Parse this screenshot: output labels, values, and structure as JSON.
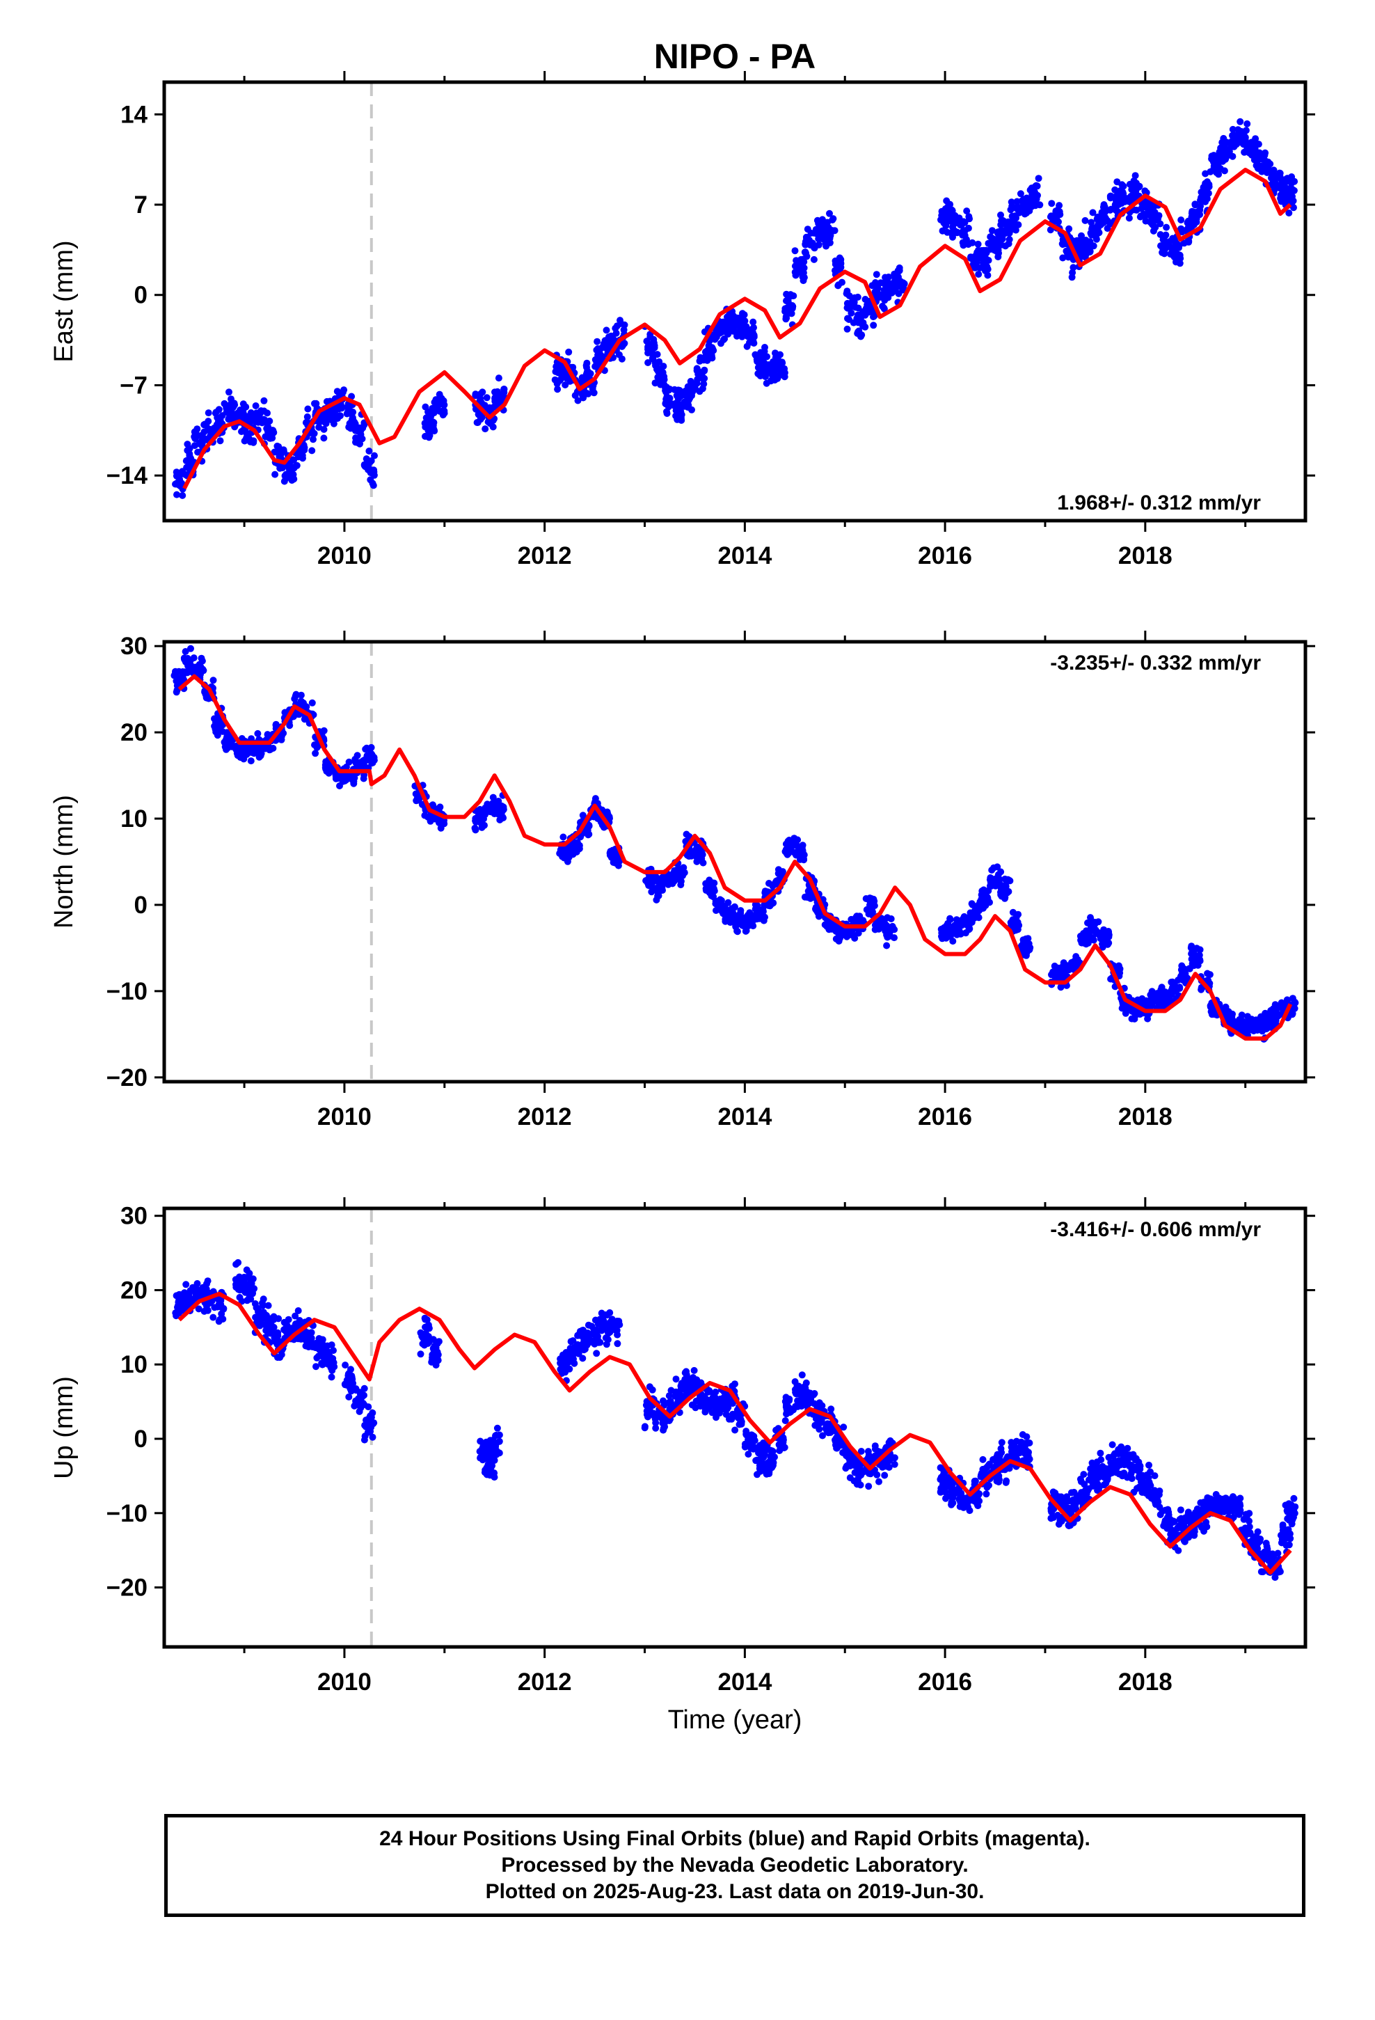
{
  "title": "NIPO - PA",
  "xlabel": "Time (year)",
  "chart_data": [
    {
      "type": "scatter",
      "panel": "east",
      "ylabel": "East (mm)",
      "xlim": [
        2008.2,
        2019.6
      ],
      "ylim": [
        -17.5,
        16.5
      ],
      "yticks": [
        -14,
        -7,
        0,
        7,
        14
      ],
      "ytick_labels": [
        "−14",
        "−7",
        "0",
        "7",
        "14"
      ],
      "xticks": [
        2010,
        2012,
        2014,
        2016,
        2018
      ],
      "rate_label": "1.968+/- 0.312 mm/yr",
      "series": [
        {
          "role": "daily positions",
          "color": "#0000ff",
          "x": [
            2008.35,
            2008.45,
            2008.55,
            2008.65,
            2008.75,
            2008.85,
            2008.95,
            2009.05,
            2009.15,
            2009.25,
            2009.35,
            2009.45,
            2009.55,
            2009.65,
            2009.75,
            2009.85,
            2009.95,
            2010.05,
            2010.15,
            2010.25,
            2010.85,
            2010.95,
            2011.35,
            2011.45,
            2011.55,
            2012.15,
            2012.25,
            2012.35,
            2012.45,
            2012.55,
            2012.65,
            2012.75,
            2013.05,
            2013.15,
            2013.25,
            2013.35,
            2013.45,
            2013.55,
            2013.65,
            2013.75,
            2013.85,
            2013.95,
            2014.05,
            2014.15,
            2014.25,
            2014.35,
            2014.45,
            2014.55,
            2014.65,
            2014.75,
            2014.85,
            2014.95,
            2015.05,
            2015.15,
            2015.25,
            2015.35,
            2015.45,
            2015.55,
            2016.0,
            2016.1,
            2016.2,
            2016.3,
            2016.4,
            2016.5,
            2016.6,
            2016.7,
            2016.8,
            2016.9,
            2017.1,
            2017.2,
            2017.3,
            2017.4,
            2017.5,
            2017.6,
            2017.7,
            2017.8,
            2017.9,
            2018.0,
            2018.1,
            2018.2,
            2018.3,
            2018.4,
            2018.5,
            2018.6,
            2018.7,
            2018.8,
            2018.9,
            2019.0,
            2019.1,
            2019.2,
            2019.3,
            2019.4,
            2019.45
          ],
          "y": [
            -14.5,
            -13,
            -11.5,
            -10.5,
            -10,
            -9,
            -9.5,
            -10,
            -9.5,
            -10.5,
            -12.5,
            -13.5,
            -12,
            -10.5,
            -9.5,
            -9,
            -8.5,
            -9,
            -10.5,
            -13.5,
            -10,
            -8.5,
            -9,
            -9.5,
            -8,
            -6,
            -6,
            -7,
            -6.5,
            -5,
            -4,
            -3.5,
            -4,
            -6,
            -8,
            -8.5,
            -8,
            -6,
            -4,
            -2.5,
            -2,
            -2.5,
            -3,
            -5,
            -6,
            -5.5,
            -1,
            2,
            4,
            5,
            5,
            2,
            -1,
            -2,
            -1,
            0,
            0.5,
            1,
            6,
            6,
            5,
            3,
            3,
            4,
            5,
            6,
            7,
            7.5,
            6,
            4,
            3,
            4,
            5,
            6,
            7,
            7.5,
            8,
            7,
            6,
            4,
            3.5,
            5,
            6,
            8,
            10,
            11,
            12,
            12,
            11,
            10,
            9,
            8,
            8
          ]
        },
        {
          "role": "model fit",
          "color": "#ff0000",
          "x": [
            2008.4,
            2008.6,
            2008.8,
            2008.95,
            2009.1,
            2009.3,
            2009.4,
            2009.55,
            2009.75,
            2010.0,
            2010.15,
            2010.35,
            2010.5,
            2010.75,
            2011.0,
            2011.2,
            2011.45,
            2011.6,
            2011.8,
            2012.0,
            2012.2,
            2012.35,
            2012.5,
            2012.75,
            2013.0,
            2013.2,
            2013.35,
            2013.55,
            2013.75,
            2014.0,
            2014.2,
            2014.35,
            2014.55,
            2014.75,
            2015.0,
            2015.2,
            2015.35,
            2015.55,
            2015.75,
            2016.0,
            2016.2,
            2016.35,
            2016.55,
            2016.75,
            2017.0,
            2017.2,
            2017.35,
            2017.55,
            2017.75,
            2018.0,
            2018.2,
            2018.35,
            2018.55,
            2018.75,
            2019.0,
            2019.2,
            2019.35,
            2019.45
          ],
          "y": [
            -15,
            -12,
            -10.2,
            -9.8,
            -10.5,
            -12.8,
            -13,
            -11.5,
            -9,
            -8,
            -8.5,
            -11.5,
            -11,
            -7.5,
            -6,
            -7.5,
            -9.5,
            -8.5,
            -5.5,
            -4.3,
            -5.2,
            -7.3,
            -6.5,
            -3.5,
            -2.3,
            -3.5,
            -5.3,
            -4.2,
            -1.5,
            -0.3,
            -1.2,
            -3.3,
            -2.2,
            0.5,
            1.8,
            1,
            -1.7,
            -0.8,
            2.2,
            3.8,
            2.8,
            0.3,
            1.2,
            4.2,
            5.7,
            4.8,
            2.3,
            3.2,
            6.2,
            7.7,
            6.8,
            4.3,
            5.2,
            8.2,
            9.7,
            8.8,
            6.3,
            7
          ]
        }
      ]
    },
    {
      "type": "scatter",
      "panel": "north",
      "ylabel": "North (mm)",
      "xlim": [
        2008.2,
        2019.6
      ],
      "ylim": [
        -20.5,
        30.5
      ],
      "yticks": [
        -20,
        -10,
        0,
        10,
        20,
        30
      ],
      "ytick_labels": [
        "−20",
        "−10",
        "0",
        "10",
        "20",
        "30"
      ],
      "xticks": [
        2010,
        2012,
        2014,
        2016,
        2018
      ],
      "rate_label": "-3.235+/- 0.332 mm/yr",
      "series": [
        {
          "role": "daily positions",
          "color": "#0000ff",
          "x": [
            2008.35,
            2008.45,
            2008.55,
            2008.65,
            2008.75,
            2008.85,
            2008.95,
            2009.05,
            2009.15,
            2009.25,
            2009.35,
            2009.45,
            2009.55,
            2009.65,
            2009.75,
            2009.85,
            2009.95,
            2010.05,
            2010.15,
            2010.25,
            2010.75,
            2010.85,
            2010.95,
            2011.35,
            2011.45,
            2011.55,
            2012.2,
            2012.3,
            2012.4,
            2012.5,
            2012.6,
            2012.7,
            2013.05,
            2013.15,
            2013.25,
            2013.35,
            2013.45,
            2013.55,
            2013.65,
            2013.75,
            2013.85,
            2013.95,
            2014.05,
            2014.15,
            2014.25,
            2014.35,
            2014.45,
            2014.55,
            2014.65,
            2014.75,
            2014.85,
            2014.95,
            2015.05,
            2015.15,
            2015.25,
            2015.35,
            2015.45,
            2016.0,
            2016.1,
            2016.2,
            2016.3,
            2016.4,
            2016.5,
            2016.6,
            2016.7,
            2016.8,
            2017.1,
            2017.2,
            2017.3,
            2017.4,
            2017.5,
            2017.6,
            2017.7,
            2017.8,
            2017.9,
            2018.0,
            2018.1,
            2018.2,
            2018.3,
            2018.4,
            2018.5,
            2018.6,
            2018.7,
            2018.8,
            2018.9,
            2019.0,
            2019.1,
            2019.2,
            2019.3,
            2019.4,
            2019.45
          ],
          "y": [
            26,
            28,
            27,
            25,
            21,
            19,
            18,
            18,
            18.5,
            19,
            20,
            22,
            23,
            22,
            19,
            16,
            15,
            15,
            16,
            17,
            13,
            11,
            10,
            10,
            11,
            11,
            6,
            7,
            9,
            11,
            10,
            6,
            3,
            2,
            3,
            4,
            7,
            6,
            2,
            0,
            -1,
            -2,
            -2,
            -1,
            1,
            3,
            7,
            6,
            2,
            0,
            -2,
            -3,
            -3,
            -2,
            0,
            -2,
            -3,
            -3,
            -3,
            -2,
            -1,
            1,
            3,
            2,
            -2,
            -5,
            -8,
            -8,
            -7,
            -4,
            -3,
            -4,
            -8,
            -11,
            -12,
            -12,
            -11,
            -11,
            -10,
            -8,
            -6,
            -9,
            -12,
            -13,
            -14,
            -14,
            -14,
            -14,
            -13,
            -12,
            -12
          ]
        },
        {
          "role": "model fit",
          "color": "#ff0000",
          "x": [
            2008.35,
            2008.5,
            2008.65,
            2008.8,
            2008.95,
            2009.1,
            2009.25,
            2009.4,
            2009.5,
            2009.65,
            2009.8,
            2009.95,
            2010.1,
            2010.25,
            2010.27,
            2010.4,
            2010.55,
            2010.7,
            2010.85,
            2011.0,
            2011.2,
            2011.35,
            2011.5,
            2011.65,
            2011.8,
            2012.0,
            2012.2,
            2012.35,
            2012.5,
            2012.65,
            2012.8,
            2013.0,
            2013.2,
            2013.35,
            2013.5,
            2013.65,
            2013.8,
            2014.0,
            2014.2,
            2014.35,
            2014.5,
            2014.65,
            2014.8,
            2015.0,
            2015.2,
            2015.35,
            2015.5,
            2015.65,
            2015.8,
            2016.0,
            2016.2,
            2016.35,
            2016.5,
            2016.65,
            2016.8,
            2017.0,
            2017.2,
            2017.35,
            2017.5,
            2017.65,
            2017.8,
            2018.0,
            2018.2,
            2018.35,
            2018.5,
            2018.65,
            2018.8,
            2019.0,
            2019.2,
            2019.35,
            2019.45
          ],
          "y": [
            25,
            26.5,
            25,
            21.5,
            18.8,
            18.8,
            18.8,
            21,
            23,
            22,
            18,
            15.5,
            15.5,
            15.5,
            14,
            15,
            18,
            15,
            11,
            10.2,
            10.2,
            12,
            15,
            12,
            8,
            7,
            7,
            8.5,
            11.5,
            9,
            5,
            3.8,
            3.8,
            5.5,
            8,
            6,
            2,
            0.5,
            0.5,
            2,
            5,
            3,
            -1,
            -2.5,
            -2.5,
            -1,
            2,
            0,
            -4,
            -5.7,
            -5.7,
            -4,
            -1.3,
            -3,
            -7.5,
            -9,
            -9,
            -7.5,
            -4.7,
            -7,
            -11,
            -12.3,
            -12.3,
            -11,
            -8,
            -10,
            -14,
            -15.5,
            -15.5,
            -14,
            -11.5
          ]
        }
      ]
    },
    {
      "type": "scatter",
      "panel": "up",
      "ylabel": "Up (mm)",
      "xlim": [
        2008.2,
        2019.6
      ],
      "ylim": [
        -28,
        31
      ],
      "yticks": [
        -20,
        -10,
        0,
        10,
        20,
        30
      ],
      "ytick_labels": [
        "−20",
        "−10",
        "0",
        "10",
        "20",
        "30"
      ],
      "xticks": [
        2010,
        2012,
        2014,
        2016,
        2018
      ],
      "rate_label": "-3.416+/- 0.606 mm/yr",
      "series": [
        {
          "role": "daily positions",
          "color": "#0000ff",
          "x": [
            2008.35,
            2008.45,
            2008.55,
            2008.65,
            2008.75,
            2008.95,
            2009.05,
            2009.15,
            2009.25,
            2009.35,
            2009.45,
            2009.55,
            2009.65,
            2009.75,
            2009.85,
            2010.05,
            2010.15,
            2010.25,
            2010.8,
            2010.9,
            2011.4,
            2011.45,
            2011.5,
            2012.2,
            2012.3,
            2012.4,
            2012.5,
            2012.6,
            2012.7,
            2013.05,
            2013.15,
            2013.25,
            2013.35,
            2013.45,
            2013.55,
            2013.65,
            2013.75,
            2013.85,
            2013.95,
            2014.05,
            2014.15,
            2014.25,
            2014.35,
            2014.45,
            2014.55,
            2014.65,
            2014.75,
            2014.85,
            2014.95,
            2015.05,
            2015.15,
            2015.25,
            2015.35,
            2015.45,
            2016.0,
            2016.1,
            2016.2,
            2016.3,
            2016.4,
            2016.5,
            2016.6,
            2016.7,
            2016.8,
            2017.1,
            2017.2,
            2017.3,
            2017.4,
            2017.5,
            2017.6,
            2017.7,
            2017.8,
            2017.9,
            2018.0,
            2018.1,
            2018.2,
            2018.3,
            2018.4,
            2018.5,
            2018.6,
            2018.7,
            2018.8,
            2018.9,
            2019.0,
            2019.1,
            2019.2,
            2019.3,
            2019.4,
            2019.45
          ],
          "y": [
            18,
            19,
            20,
            19,
            18,
            21,
            20,
            17,
            15,
            13,
            14,
            15,
            14,
            12,
            11,
            8,
            5,
            2,
            14,
            12,
            -2,
            -3,
            -1,
            10,
            12,
            13,
            14,
            15,
            15,
            4,
            3,
            4,
            6,
            7,
            6,
            5,
            5,
            5,
            3,
            0,
            -2,
            -3,
            0,
            4,
            6,
            5,
            3,
            2,
            0,
            -3,
            -4,
            -4,
            -3,
            -2,
            -6,
            -7,
            -8,
            -7,
            -5,
            -4,
            -3,
            -2,
            -2,
            -9,
            -10,
            -9,
            -7,
            -5,
            -4,
            -3,
            -3,
            -4,
            -6,
            -8,
            -11,
            -13,
            -12,
            -11,
            -10,
            -9,
            -9,
            -9,
            -12,
            -14,
            -16,
            -17,
            -13,
            -10
          ]
        },
        {
          "role": "model fit",
          "color": "#ff0000",
          "x": [
            2008.35,
            2008.55,
            2008.75,
            2008.95,
            2009.15,
            2009.3,
            2009.5,
            2009.7,
            2009.9,
            2010.1,
            2010.25,
            2010.35,
            2010.55,
            2010.75,
            2010.95,
            2011.15,
            2011.3,
            2011.5,
            2011.7,
            2011.9,
            2012.1,
            2012.25,
            2012.45,
            2012.65,
            2012.85,
            2013.05,
            2013.25,
            2013.45,
            2013.65,
            2013.85,
            2014.05,
            2014.25,
            2014.45,
            2014.65,
            2014.85,
            2015.05,
            2015.25,
            2015.45,
            2015.65,
            2015.85,
            2016.05,
            2016.25,
            2016.45,
            2016.65,
            2016.85,
            2017.05,
            2017.25,
            2017.45,
            2017.65,
            2017.85,
            2018.05,
            2018.25,
            2018.45,
            2018.65,
            2018.85,
            2019.05,
            2019.25,
            2019.45
          ],
          "y": [
            16,
            18.5,
            19.5,
            18,
            14,
            11.5,
            14,
            16,
            15,
            11,
            8,
            13,
            16,
            17.5,
            16,
            12,
            9.5,
            12,
            14,
            13,
            9,
            6.5,
            9,
            11,
            10,
            5.5,
            3,
            5.5,
            7.5,
            6.5,
            2.5,
            -0.5,
            2,
            4,
            3,
            -1,
            -4,
            -1.5,
            0.5,
            -0.5,
            -4.5,
            -7.5,
            -5,
            -3,
            -4,
            -8,
            -11,
            -8.5,
            -6.5,
            -7.5,
            -11.5,
            -14.5,
            -12,
            -10,
            -11,
            -15,
            -18,
            -15
          ]
        }
      ]
    }
  ],
  "caption": {
    "line1": "24 Hour Positions Using Final Orbits (blue) and Rapid Orbits (magenta).",
    "line2": "Processed by the Nevada Geodetic Laboratory.",
    "line3": "Plotted on 2025-Aug-23. Last data on 2019-Jun-30."
  },
  "event_marker_year": 2010.27
}
